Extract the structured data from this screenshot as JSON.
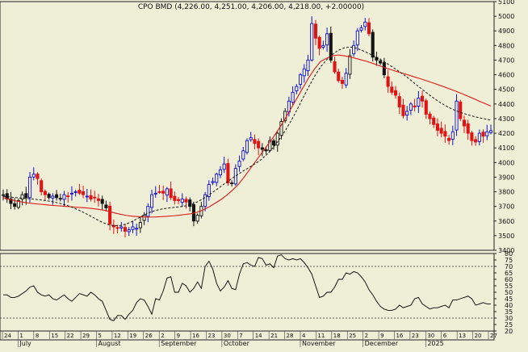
{
  "chart_data": [
    {
      "type": "candlestick",
      "title": "CPO BMD (4,226.00, 4,251.00, 4,206.00, 4,218.00, +2.00000)",
      "ylim": [
        3400,
        5100
      ],
      "yticks": [
        3400,
        3500,
        3600,
        3700,
        3800,
        3900,
        4000,
        4100,
        4200,
        4300,
        4400,
        4500,
        4600,
        4700,
        4800,
        4900,
        5000,
        5100
      ],
      "grid": false,
      "colors": {
        "up": "#1010c8",
        "down": "#e01414",
        "neutral": "#141414",
        "moving_average_solid": "#e01818",
        "moving_average_dashed": "#000000"
      },
      "close_series": [
        3780,
        3750,
        3720,
        3700,
        3740,
        3780,
        3760,
        3900,
        3920,
        3890,
        3800,
        3780,
        3760,
        3770,
        3760,
        3750,
        3780,
        3770,
        3790,
        3800,
        3790,
        3780,
        3770,
        3750,
        3760,
        3740,
        3720,
        3690,
        3580,
        3560,
        3550,
        3560,
        3530,
        3540,
        3560,
        3550,
        3590,
        3640,
        3700,
        3780,
        3790,
        3800,
        3790,
        3820,
        3760,
        3740,
        3740,
        3750,
        3730,
        3700,
        3600,
        3640,
        3700,
        3780,
        3850,
        3870,
        3920,
        3950,
        3990,
        3860,
        3860,
        3960,
        4010,
        4080,
        4150,
        4170,
        4130,
        4100,
        4090,
        4080,
        4150,
        4120,
        4200,
        4280,
        4350,
        4420,
        4480,
        4520,
        4600,
        4640,
        4700,
        4950,
        4850,
        4780,
        4800,
        4880,
        4700,
        4620,
        4560,
        4540,
        4610,
        4730,
        4800,
        4900,
        4920,
        4960,
        4880,
        4720,
        4700,
        4680,
        4600,
        4520,
        4480,
        4460,
        4380,
        4320,
        4350,
        4400,
        4380,
        4440,
        4420,
        4330,
        4300,
        4260,
        4220,
        4200,
        4180,
        4150,
        4210,
        4420,
        4300,
        4250,
        4200,
        4150,
        4140,
        4200,
        4180,
        4210,
        4218
      ],
      "moving_averages": [
        {
          "style": "solid",
          "values": [
            3760,
            3748,
            3739,
            3731,
            3725,
            3720,
            3716,
            3712,
            3708,
            3705,
            3702,
            3699,
            3696,
            3693,
            3690,
            3686,
            3681,
            3675,
            3666,
            3655,
            3646,
            3638,
            3633,
            3630,
            3628,
            3627,
            3628,
            3630,
            3633,
            3636,
            3640,
            3645,
            3650,
            3660,
            3675,
            3695,
            3720,
            3745,
            3775,
            3810,
            3850,
            3900,
            3955,
            4010,
            4065,
            4120,
            4175,
            4235,
            4300,
            4370,
            4440,
            4510,
            4580,
            4640,
            4690,
            4712,
            4730,
            4735,
            4730,
            4722,
            4712,
            4701,
            4690,
            4676,
            4662,
            4648,
            4635,
            4622,
            4610,
            4598,
            4585,
            4573,
            4560,
            4546,
            4532,
            4518,
            4503,
            4488,
            4472,
            4455,
            4438,
            4420,
            4403,
            4385
          ]
        },
        {
          "style": "dashed",
          "values": [
            3769,
            3765,
            3761,
            3757,
            3754,
            3750,
            3746,
            3741,
            3735,
            3727,
            3717,
            3705,
            3690,
            3672,
            3652,
            3631,
            3609,
            3589,
            3574,
            3568,
            3570,
            3580,
            3598,
            3620,
            3642,
            3660,
            3673,
            3682,
            3688,
            3693,
            3697,
            3703,
            3715,
            3730,
            3752,
            3778,
            3806,
            3835,
            3865,
            3893,
            3920,
            3946,
            3970,
            3995,
            4023,
            4060,
            4105,
            4158,
            4218,
            4285,
            4360,
            4440,
            4517,
            4590,
            4653,
            4700,
            4738,
            4766,
            4783,
            4790,
            4783,
            4768,
            4750,
            4730,
            4708,
            4685,
            4660,
            4633,
            4605,
            4575,
            4542,
            4510,
            4478,
            4448,
            4420,
            4395,
            4373,
            4355,
            4340,
            4327,
            4316,
            4306,
            4298,
            4290
          ]
        }
      ],
      "indicator": {
        "ylim": [
          20,
          80
        ],
        "yticks": [
          20,
          25,
          30,
          35,
          40,
          45,
          50,
          55,
          60,
          65,
          70,
          75,
          80
        ],
        "reference_lines": [
          30,
          70
        ],
        "values": [
          48,
          48,
          46,
          46,
          47,
          49,
          51,
          54,
          55,
          50,
          48,
          47,
          48,
          45,
          44,
          46,
          48,
          45,
          43,
          46,
          49,
          48,
          47,
          50,
          48,
          45,
          43,
          36,
          29,
          28,
          32,
          32,
          29,
          33,
          36,
          42,
          45,
          44,
          39,
          33,
          45,
          44,
          51,
          61,
          62,
          50,
          50,
          57,
          55,
          50,
          53,
          58,
          53,
          70,
          74,
          68,
          57,
          51,
          54,
          59,
          53,
          52,
          64,
          72,
          73,
          71,
          70,
          77,
          76,
          71,
          72,
          69,
          78,
          79,
          76,
          75,
          76,
          75,
          76,
          73,
          69,
          64,
          55,
          46,
          47,
          50,
          50,
          54,
          60,
          60,
          65,
          64,
          66,
          65,
          62,
          58,
          52,
          48,
          43,
          39,
          37,
          36,
          36,
          37,
          40,
          38,
          39,
          40,
          45,
          46,
          41,
          39,
          37,
          38,
          38,
          39,
          40,
          38,
          44,
          44,
          45,
          46,
          47,
          45,
          40,
          41,
          42,
          41,
          41
        ]
      },
      "xaxis": {
        "day_ticks": [
          "24",
          "1",
          "8",
          "15",
          "22",
          "29",
          "5",
          "12",
          "19",
          "26",
          "2",
          "9",
          "16",
          "23",
          "30",
          "7",
          "14",
          "21",
          "28",
          "4",
          "11",
          "18",
          "25",
          "2",
          "9",
          "16",
          "23",
          "30",
          "6",
          "13",
          "20",
          "27"
        ],
        "months": [
          "July",
          "August",
          "September",
          "October",
          "November",
          "December",
          "2025"
        ]
      }
    }
  ]
}
